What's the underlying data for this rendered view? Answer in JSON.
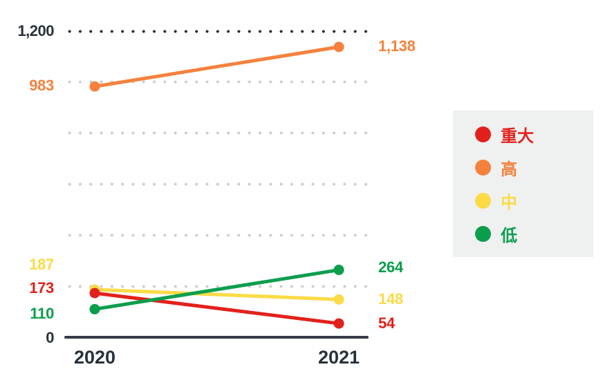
{
  "chart_data": {
    "type": "line",
    "categories": [
      "2020",
      "2021"
    ],
    "y_ticks": [
      "1,200",
      "0"
    ],
    "ylim": [
      0,
      1200
    ],
    "gridline_step": 200,
    "grid": "dotted-horizontal",
    "legend_position": "right",
    "series": [
      {
        "name": "重大",
        "color": "#e2211c",
        "values": [
          173,
          54
        ],
        "point_labels": [
          "173",
          "54"
        ]
      },
      {
        "name": "高",
        "color": "#f5813d",
        "values": [
          983,
          1138
        ],
        "point_labels": [
          "983",
          "1,138"
        ]
      },
      {
        "name": "中",
        "color": "#fbdb46",
        "values": [
          187,
          148
        ],
        "point_labels": [
          "187",
          "148"
        ]
      },
      {
        "name": "低",
        "color": "#0b9e4d",
        "values": [
          110,
          264
        ],
        "point_labels": [
          "110",
          "264"
        ]
      }
    ]
  },
  "colors": {
    "axis_text": "#28313a",
    "gridline_light": "#cdcdcd",
    "gridline_dark": "#28313a",
    "axis_line": "#343b44",
    "legend_bg": "#eff1f0"
  }
}
